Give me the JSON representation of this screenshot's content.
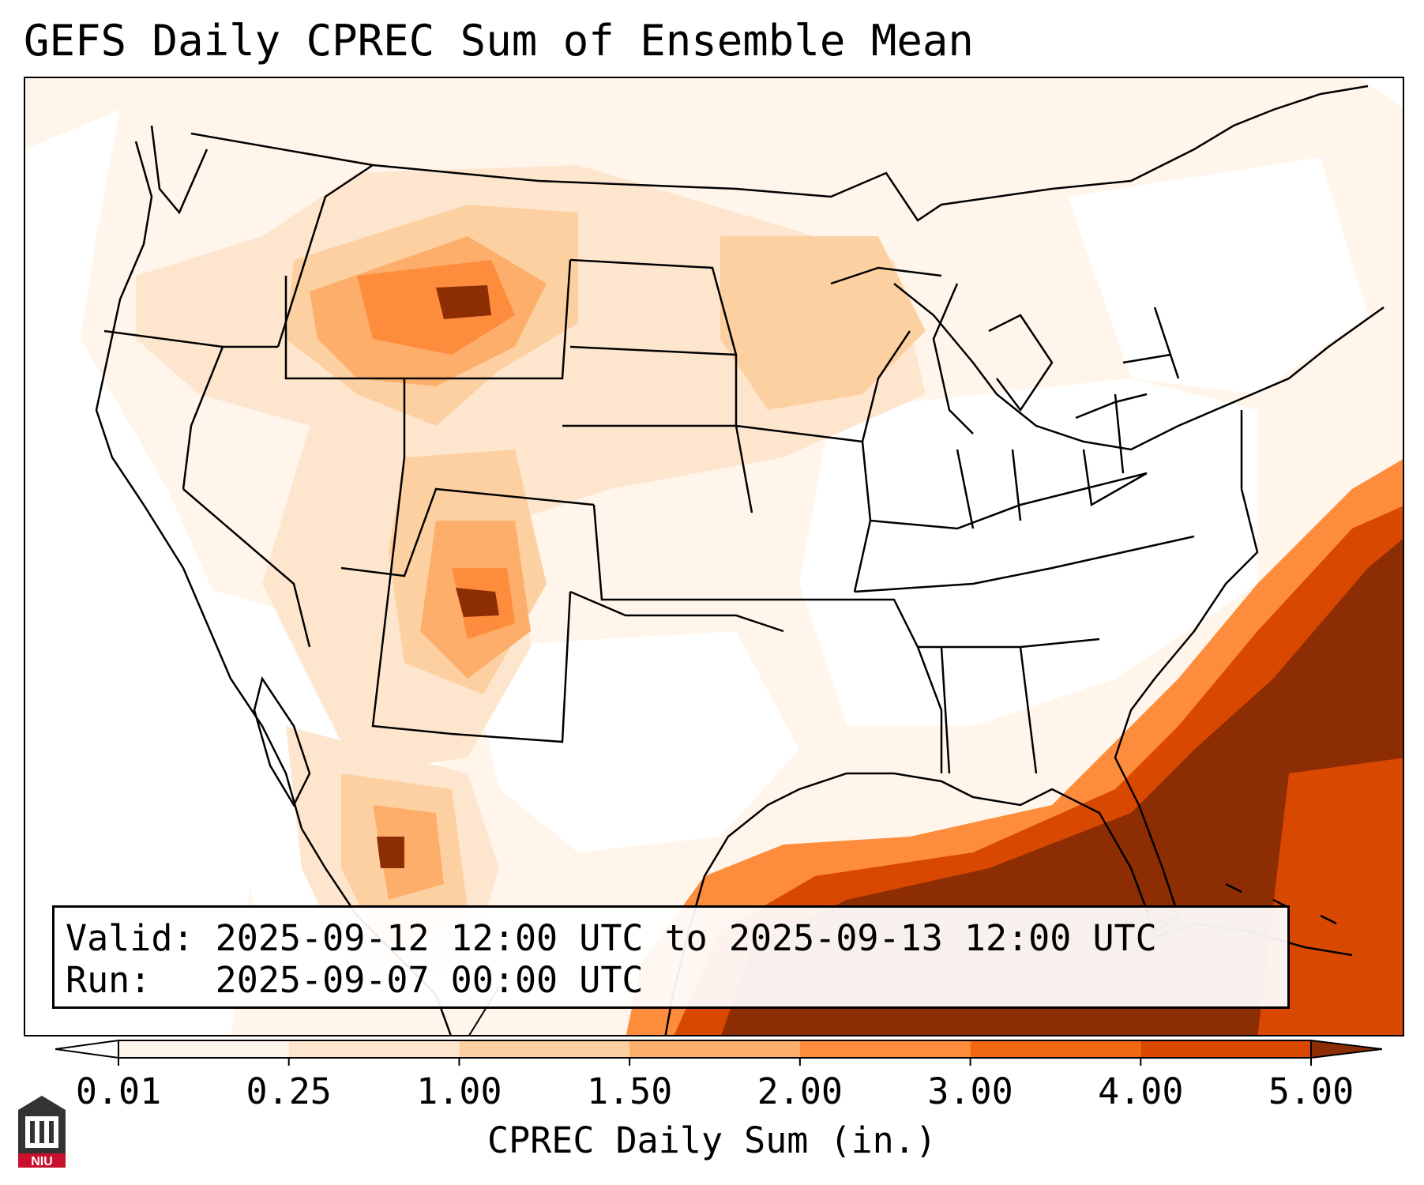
{
  "title": "GEFS Daily CPREC Sum of Ensemble Mean",
  "info": {
    "valid_label": "Valid:",
    "valid_value": "2025-09-12 12:00 UTC to 2025-09-13 12:00 UTC",
    "run_label": "Run:",
    "run_value": "2025-09-07 00:00 UTC"
  },
  "colorbar": {
    "ticks": [
      "0.01",
      "0.25",
      "1.00",
      "1.50",
      "2.00",
      "3.00",
      "4.00",
      "5.00"
    ],
    "label": "CPREC Daily Sum (in.)",
    "colors": [
      "#fff5eb",
      "#fee6ce",
      "#fdd0a2",
      "#fdae6b",
      "#fd8d3c",
      "#f16913",
      "#d94801",
      "#8c2d04"
    ]
  },
  "logo": {
    "text": "NIU"
  }
}
